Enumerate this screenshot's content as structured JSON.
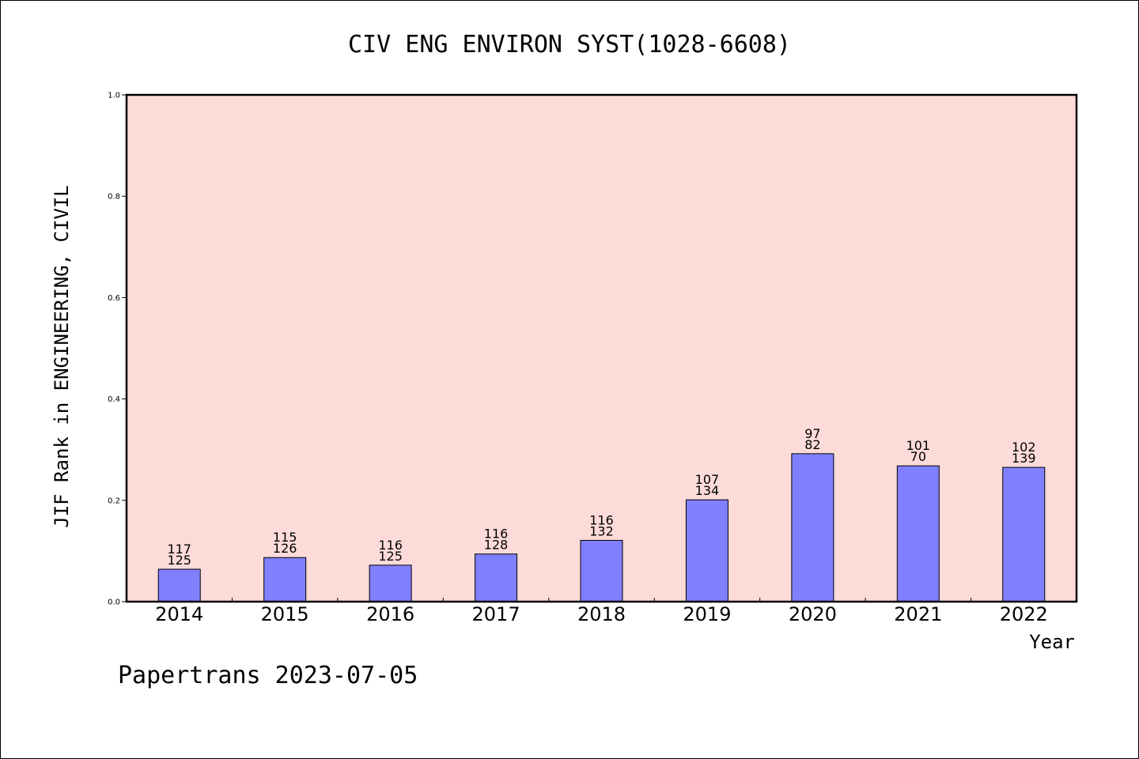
{
  "chart_data": {
    "type": "bar",
    "title": "CIV ENG ENVIRON SYST(1028-6608)",
    "xlabel": "Year",
    "ylabel": "JIF Rank in ENGINEERING, CIVIL",
    "categories": [
      "2014",
      "2015",
      "2016",
      "2017",
      "2018",
      "2019",
      "2020",
      "2021",
      "2022"
    ],
    "values": [
      0.064,
      0.087,
      0.072,
      0.094,
      0.121,
      0.201,
      0.292,
      0.268,
      0.265
    ],
    "bar_labels": [
      {
        "top": "117",
        "bottom": "125"
      },
      {
        "top": "115",
        "bottom": "126"
      },
      {
        "top": "116",
        "bottom": "125"
      },
      {
        "top": "116",
        "bottom": "128"
      },
      {
        "top": "116",
        "bottom": "132"
      },
      {
        "top": "107",
        "bottom": "134"
      },
      {
        "top": "97",
        "bottom": "82"
      },
      {
        "top": "101",
        "bottom": "70"
      },
      {
        "top": "102",
        "bottom": "139"
      }
    ],
    "ylim": [
      0.0,
      1.0
    ],
    "yticks": [
      "0.0",
      "0.2",
      "0.4",
      "0.6",
      "0.8",
      "1.0"
    ],
    "grid": false,
    "legend": "none",
    "colors": {
      "plot_background": "#fddbd8",
      "bar_fill": "#8080ff",
      "bar_stroke": "#000000"
    }
  },
  "footer": {
    "text": "Papertrans 2023-07-05"
  }
}
